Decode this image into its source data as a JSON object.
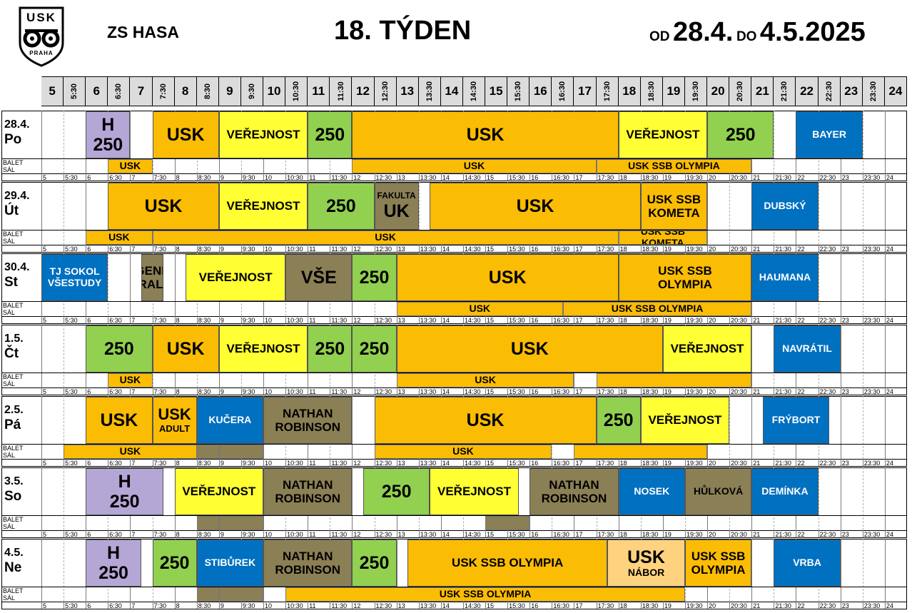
{
  "header": {
    "logo_text_top": "USK",
    "logo_text_bottom": "PRAHA",
    "venue": "ZS HASA",
    "week_title": "18. TÝDEN",
    "from_label": "OD",
    "from_date": "28.4.",
    "to_label": "DO",
    "to_date": "4.5.2025"
  },
  "time_labels": [
    "5",
    "5:30",
    "6",
    "6:30",
    "7",
    "7:30",
    "8",
    "8:30",
    "9",
    "9:30",
    "10",
    "10:30",
    "11",
    "11:30",
    "12",
    "12:30",
    "13",
    "13:30",
    "14",
    "14:30",
    "15",
    "15:30",
    "16",
    "16:30",
    "17",
    "17:30",
    "18",
    "18:30",
    "19",
    "19:30",
    "20",
    "20:30",
    "21",
    "21:30",
    "22",
    "22:30",
    "23",
    "23:30",
    "24"
  ],
  "balet_label": "BALET",
  "sal_label": "SÁL",
  "colors": {
    "orange": "#fbbc04",
    "yellow": "#ffff33",
    "green": "#92d050",
    "blue": "#0070c0",
    "purple": "#b4a7d6",
    "olive": "#8b7f55",
    "peach": "#ffd27f"
  },
  "days": [
    {
      "date": "28.4.",
      "day": "Po",
      "main": [
        {
          "s": 6,
          "e": 7,
          "c": "purple",
          "t": "H\n250",
          "z": "big"
        },
        {
          "s": 7.5,
          "e": 9,
          "c": "orange",
          "t": "USK",
          "z": "big"
        },
        {
          "s": 9,
          "e": 11,
          "c": "yellow",
          "t": "VEŘEJNOST",
          "z": "mid"
        },
        {
          "s": 11,
          "e": 12,
          "c": "green",
          "t": "250",
          "z": "big"
        },
        {
          "s": 12,
          "e": 18,
          "c": "orange",
          "t": "USK",
          "z": "big"
        },
        {
          "s": 18,
          "e": 20,
          "c": "yellow",
          "t": "VEŘEJNOST",
          "z": "mid"
        },
        {
          "s": 20,
          "e": 21.5,
          "c": "green",
          "t": "250",
          "z": "big"
        },
        {
          "s": 22,
          "e": 23.5,
          "c": "blue",
          "t": "BAYER",
          "z": "sm"
        }
      ],
      "balet": [
        {
          "s": 6.5,
          "e": 7.5,
          "c": "orange",
          "t": "USK"
        },
        {
          "s": 12,
          "e": 17.5,
          "c": "orange",
          "t": "USK"
        },
        {
          "s": 17.5,
          "e": 21,
          "c": "orange",
          "t": "USK SSB OLYMPIA"
        }
      ]
    },
    {
      "date": "29.4.",
      "day": "Út",
      "main": [
        {
          "s": 6.5,
          "e": 9,
          "c": "orange",
          "t": "USK",
          "z": "big"
        },
        {
          "s": 9,
          "e": 11,
          "c": "yellow",
          "t": "VEŘEJNOST",
          "z": "mid"
        },
        {
          "s": 11,
          "e": 12.5,
          "c": "green",
          "t": "250",
          "z": "big"
        },
        {
          "s": 12.5,
          "e": 13.5,
          "c": "olive",
          "t": "FAKULTA\nUK",
          "z": "fk"
        },
        {
          "s": 13.75,
          "e": 18.5,
          "c": "orange",
          "t": "USK",
          "z": "big"
        },
        {
          "s": 18.5,
          "e": 20,
          "c": "orange",
          "t": "USK SSB\nKOMETA",
          "z": "mid"
        },
        {
          "s": 21,
          "e": 22.5,
          "c": "blue",
          "t": "DUBSKÝ",
          "z": "sm"
        }
      ],
      "balet": [
        {
          "s": 6,
          "e": 7.5,
          "c": "orange",
          "t": "USK"
        },
        {
          "s": 7.5,
          "e": 18,
          "c": "orange",
          "t": "USK"
        },
        {
          "s": 18,
          "e": 20,
          "c": "orange",
          "t": "USK SSB KOMETA"
        }
      ]
    },
    {
      "date": "30.4.",
      "day": "St",
      "main": [
        {
          "s": 5,
          "e": 6.5,
          "c": "blue",
          "t": "TJ SOKOL\nVŠESTUDY",
          "z": "sm"
        },
        {
          "s": 7.25,
          "e": 7.75,
          "c": "olive",
          "t": "GENE\nRALI",
          "z": "mid"
        },
        {
          "s": 8.25,
          "e": 10.5,
          "c": "yellow",
          "t": "VEŘEJNOST",
          "z": "mid"
        },
        {
          "s": 10.5,
          "e": 12,
          "c": "olive",
          "t": "VŠE",
          "z": "big"
        },
        {
          "s": 12,
          "e": 13,
          "c": "green",
          "t": "250",
          "z": "big"
        },
        {
          "s": 13,
          "e": 18,
          "c": "orange",
          "t": "USK",
          "z": "big"
        },
        {
          "s": 18,
          "e": 21,
          "c": "orange",
          "t": "USK SSB\nOLYMPIA",
          "z": "mid"
        },
        {
          "s": 21,
          "e": 22.5,
          "c": "blue",
          "t": "HAUMANA",
          "z": "sm"
        }
      ],
      "balet": [
        {
          "s": 13,
          "e": 16.75,
          "c": "orange",
          "t": "USK"
        },
        {
          "s": 16.75,
          "e": 21,
          "c": "orange",
          "t": "USK SSB OLYMPIA"
        }
      ]
    },
    {
      "date": "1.5.",
      "day": "Čt",
      "main": [
        {
          "s": 6,
          "e": 7.5,
          "c": "green",
          "t": "250",
          "z": "big"
        },
        {
          "s": 7.5,
          "e": 9,
          "c": "orange",
          "t": "USK",
          "z": "big"
        },
        {
          "s": 9,
          "e": 11,
          "c": "yellow",
          "t": "VEŘEJNOST",
          "z": "mid"
        },
        {
          "s": 11,
          "e": 12,
          "c": "green",
          "t": "250",
          "z": "big"
        },
        {
          "s": 12,
          "e": 13,
          "c": "green",
          "t": "250",
          "z": "big"
        },
        {
          "s": 13,
          "e": 19,
          "c": "orange",
          "t": "USK",
          "z": "big"
        },
        {
          "s": 19,
          "e": 21,
          "c": "yellow",
          "t": "VEŘEJNOST",
          "z": "mid"
        },
        {
          "s": 21.5,
          "e": 23,
          "c": "blue",
          "t": "NAVRÁTIL",
          "z": "sm"
        }
      ],
      "balet": [
        {
          "s": 6.5,
          "e": 7.5,
          "c": "orange",
          "t": "USK"
        },
        {
          "s": 13,
          "e": 17,
          "c": "orange",
          "t": "USK"
        },
        {
          "s": 17.5,
          "e": 21,
          "c": "orange",
          "t": ""
        }
      ]
    },
    {
      "date": "2.5.",
      "day": "Pá",
      "main": [
        {
          "s": 6,
          "e": 7.5,
          "c": "orange",
          "t": "USK",
          "z": "big"
        },
        {
          "s": 7.5,
          "e": 8.5,
          "c": "orange",
          "t": "USK\nADULT",
          "z": "adult"
        },
        {
          "s": 8.5,
          "e": 10,
          "c": "blue",
          "t": "KUČERA",
          "z": "sm"
        },
        {
          "s": 10,
          "e": 12,
          "c": "olive",
          "t": "NATHAN\nROBINSON",
          "z": "mid"
        },
        {
          "s": 12.5,
          "e": 17.5,
          "c": "orange",
          "t": "USK",
          "z": "big"
        },
        {
          "s": 17.5,
          "e": 18.5,
          "c": "green",
          "t": "250",
          "z": "big"
        },
        {
          "s": 18.5,
          "e": 20.5,
          "c": "yellow",
          "t": "VEŘEJNOST",
          "z": "mid"
        },
        {
          "s": 21.25,
          "e": 22.75,
          "c": "blue",
          "t": "FRÝBORT",
          "z": "sm"
        }
      ],
      "balet": [
        {
          "s": 5.5,
          "e": 8.5,
          "c": "orange",
          "t": "USK"
        },
        {
          "s": 8.5,
          "e": 9,
          "c": "olive",
          "t": ""
        },
        {
          "s": 9,
          "e": 10,
          "c": "olive",
          "t": ""
        },
        {
          "s": 12.5,
          "e": 16.5,
          "c": "orange",
          "t": "USK"
        },
        {
          "s": 17,
          "e": 20,
          "c": "orange",
          "t": ""
        }
      ]
    },
    {
      "date": "3.5.",
      "day": "So",
      "main": [
        {
          "s": 6,
          "e": 7.75,
          "c": "purple",
          "t": "H\n250",
          "z": "big"
        },
        {
          "s": 8,
          "e": 10,
          "c": "yellow",
          "t": "VEŘEJNOST",
          "z": "mid"
        },
        {
          "s": 10,
          "e": 12,
          "c": "olive",
          "t": "NATHAN\nROBINSON",
          "z": "mid"
        },
        {
          "s": 12.25,
          "e": 13.75,
          "c": "green",
          "t": "250",
          "z": "big"
        },
        {
          "s": 13.75,
          "e": 15.75,
          "c": "yellow",
          "t": "VEŘEJNOST",
          "z": "mid"
        },
        {
          "s": 16,
          "e": 18,
          "c": "olive",
          "t": "NATHAN\nROBINSON",
          "z": "mid"
        },
        {
          "s": 18,
          "e": 19.5,
          "c": "blue",
          "t": "NOSEK",
          "z": "sm"
        },
        {
          "s": 19.5,
          "e": 21,
          "c": "olive",
          "t": "HŮLKOVÁ",
          "z": "sm"
        },
        {
          "s": 21,
          "e": 22.5,
          "c": "blue",
          "t": "DEMÍNKA",
          "z": "sm"
        }
      ],
      "balet": [
        {
          "s": 8.5,
          "e": 9,
          "c": "olive",
          "t": ""
        },
        {
          "s": 9,
          "e": 10,
          "c": "olive",
          "t": ""
        },
        {
          "s": 15,
          "e": 16,
          "c": "olive",
          "t": ""
        }
      ]
    },
    {
      "date": "4.5.",
      "day": "Ne",
      "main": [
        {
          "s": 6,
          "e": 7.25,
          "c": "purple",
          "t": "H\n250",
          "z": "big"
        },
        {
          "s": 7.5,
          "e": 8.5,
          "c": "green",
          "t": "250",
          "z": "big"
        },
        {
          "s": 8.5,
          "e": 10,
          "c": "blue",
          "t": "STIBŮREK",
          "z": "sm"
        },
        {
          "s": 10,
          "e": 12,
          "c": "olive",
          "t": "NATHAN\nROBINSON",
          "z": "mid"
        },
        {
          "s": 12,
          "e": 13,
          "c": "green",
          "t": "250",
          "z": "big"
        },
        {
          "s": 13.25,
          "e": 17.75,
          "c": "orange",
          "t": "USK SSB OLYMPIA",
          "z": "mid"
        },
        {
          "s": 17.75,
          "e": 19.5,
          "c": "peach",
          "t": "USK\nNÁBOR",
          "z": "nabor"
        },
        {
          "s": 19.5,
          "e": 21,
          "c": "orange",
          "t": "USK SSB\nOLYMPIA",
          "z": "mid"
        },
        {
          "s": 21.5,
          "e": 23,
          "c": "blue",
          "t": "VRBA",
          "z": "sm"
        }
      ],
      "balet": [
        {
          "s": 8.5,
          "e": 9,
          "c": "olive",
          "t": ""
        },
        {
          "s": 9,
          "e": 10,
          "c": "olive",
          "t": ""
        },
        {
          "s": 10.5,
          "e": 19.5,
          "c": "orange",
          "t": "USK SSB OLYMPIA"
        }
      ]
    }
  ]
}
